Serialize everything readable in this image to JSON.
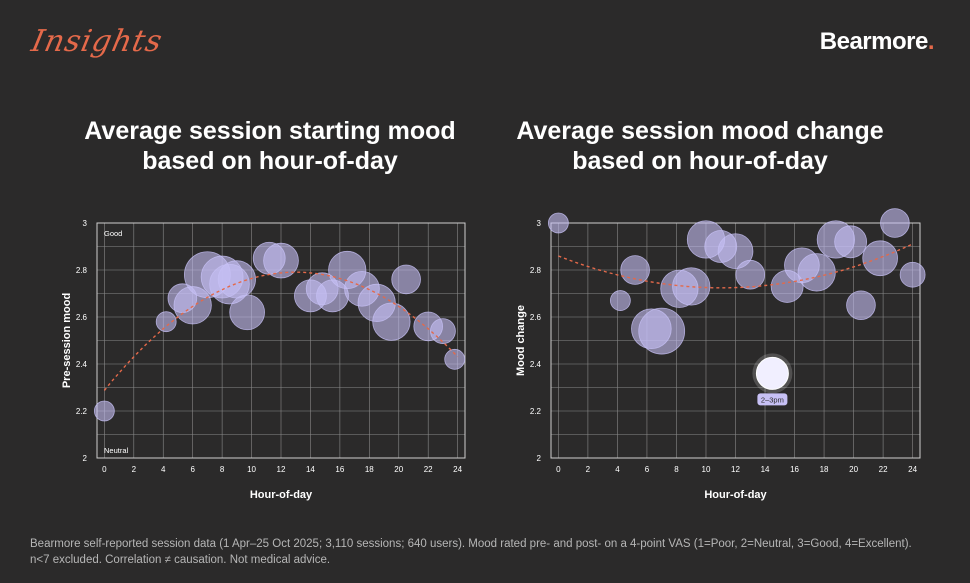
{
  "header": {
    "section_label": "Insights",
    "logo_text": "Bearmore",
    "logo_dot": "."
  },
  "footnote": {
    "line1": "Bearmore self-reported session data (1 Apr–25 Oct 2025; 3,110 sessions; 640 users). Mood rated pre- and post- on a 4-point VAS (1=Poor, 2=Neutral, 3=Good, 4=Excellent).",
    "line2": "n<7 excluded. Correlation ≠ causation. Not medical advice."
  },
  "colors": {
    "background": "#2b2a2a",
    "accent": "#e4694a",
    "bubble": "#c7c0f5",
    "grid": "#8a8a8a",
    "plot_border": "#cfcfcf",
    "trend": "#e4694a"
  },
  "chart_data": [
    {
      "type": "scatter",
      "title": "Average session starting mood based on hour-of-day",
      "xlabel": "Hour-of-day",
      "ylabel": "Pre-session mood",
      "xlim": [
        -0.5,
        24.5
      ],
      "ylim": [
        2,
        3
      ],
      "xticks": [
        0,
        2,
        4,
        6,
        8,
        10,
        12,
        14,
        16,
        18,
        20,
        22,
        24
      ],
      "xtick_labels": [
        "0",
        "2",
        "4",
        "6",
        "8",
        "10",
        "12",
        "14",
        "16",
        "18",
        "20",
        "22",
        "24"
      ],
      "yticks": [
        2,
        2.2,
        2.4,
        2.6,
        2.8,
        3
      ],
      "ytick_labels": [
        "2",
        "2.2",
        "2.4",
        "2.6",
        "2.8",
        "3"
      ],
      "annotations": {
        "top": "Good",
        "bottom": "Neutral"
      },
      "grid": true,
      "trendline": true,
      "points": [
        {
          "x": 0,
          "y": 2.2,
          "weight": 1
        },
        {
          "x": 4.2,
          "y": 2.58,
          "weight": 1
        },
        {
          "x": 5.3,
          "y": 2.68,
          "weight": 3
        },
        {
          "x": 6,
          "y": 2.65,
          "weight": 6
        },
        {
          "x": 7,
          "y": 2.78,
          "weight": 10
        },
        {
          "x": 8,
          "y": 2.77,
          "weight": 8
        },
        {
          "x": 8.5,
          "y": 2.74,
          "weight": 7
        },
        {
          "x": 9,
          "y": 2.76,
          "weight": 6
        },
        {
          "x": 9.7,
          "y": 2.62,
          "weight": 5
        },
        {
          "x": 11.2,
          "y": 2.85,
          "weight": 4
        },
        {
          "x": 12,
          "y": 2.84,
          "weight": 5
        },
        {
          "x": 14,
          "y": 2.69,
          "weight": 4
        },
        {
          "x": 14.8,
          "y": 2.72,
          "weight": 4
        },
        {
          "x": 15.5,
          "y": 2.69,
          "weight": 4
        },
        {
          "x": 16.5,
          "y": 2.8,
          "weight": 6
        },
        {
          "x": 17.5,
          "y": 2.72,
          "weight": 5
        },
        {
          "x": 18.5,
          "y": 2.66,
          "weight": 6
        },
        {
          "x": 19.5,
          "y": 2.58,
          "weight": 6
        },
        {
          "x": 20.5,
          "y": 2.76,
          "weight": 3
        },
        {
          "x": 22,
          "y": 2.56,
          "weight": 3
        },
        {
          "x": 23,
          "y": 2.54,
          "weight": 2
        },
        {
          "x": 23.8,
          "y": 2.42,
          "weight": 1
        }
      ]
    },
    {
      "type": "scatter",
      "title": "Average session mood change based on hour-of-day",
      "xlabel": "Hour-of-day",
      "ylabel": "Mood change",
      "xlim": [
        -0.5,
        24.5
      ],
      "ylim": [
        2,
        3
      ],
      "xticks": [
        0,
        2,
        4,
        6,
        8,
        10,
        12,
        14,
        16,
        18,
        20,
        22,
        24
      ],
      "xtick_labels": [
        "0",
        "2",
        "4",
        "6",
        "8",
        "10",
        "12",
        "14",
        "16",
        "18",
        "20",
        "22",
        "24"
      ],
      "yticks": [
        2,
        2.2,
        2.4,
        2.6,
        2.8,
        3
      ],
      "ytick_labels": [
        "2",
        "2.2",
        "2.4",
        "2.6",
        "2.8",
        "3"
      ],
      "grid": true,
      "trendline": true,
      "highlight": {
        "x": 14.5,
        "y": 2.36,
        "label": "2–3pm"
      },
      "points": [
        {
          "x": 0,
          "y": 3,
          "weight": 1
        },
        {
          "x": 4.2,
          "y": 2.67,
          "weight": 1
        },
        {
          "x": 5.2,
          "y": 2.8,
          "weight": 3
        },
        {
          "x": 6.3,
          "y": 2.55,
          "weight": 7
        },
        {
          "x": 7,
          "y": 2.54,
          "weight": 10
        },
        {
          "x": 8.2,
          "y": 2.72,
          "weight": 6
        },
        {
          "x": 9,
          "y": 2.73,
          "weight": 6
        },
        {
          "x": 10,
          "y": 2.93,
          "weight": 6
        },
        {
          "x": 11,
          "y": 2.9,
          "weight": 4
        },
        {
          "x": 12,
          "y": 2.88,
          "weight": 5
        },
        {
          "x": 13,
          "y": 2.78,
          "weight": 3
        },
        {
          "x": 14.5,
          "y": 2.36,
          "weight": 4
        },
        {
          "x": 15.5,
          "y": 2.73,
          "weight": 4
        },
        {
          "x": 16.5,
          "y": 2.82,
          "weight": 5
        },
        {
          "x": 17.5,
          "y": 2.79,
          "weight": 6
        },
        {
          "x": 18.8,
          "y": 2.93,
          "weight": 6
        },
        {
          "x": 19.8,
          "y": 2.92,
          "weight": 4
        },
        {
          "x": 20.5,
          "y": 2.65,
          "weight": 3
        },
        {
          "x": 21.8,
          "y": 2.85,
          "weight": 5
        },
        {
          "x": 22.8,
          "y": 3,
          "weight": 3
        },
        {
          "x": 24,
          "y": 2.78,
          "weight": 2
        }
      ]
    }
  ]
}
